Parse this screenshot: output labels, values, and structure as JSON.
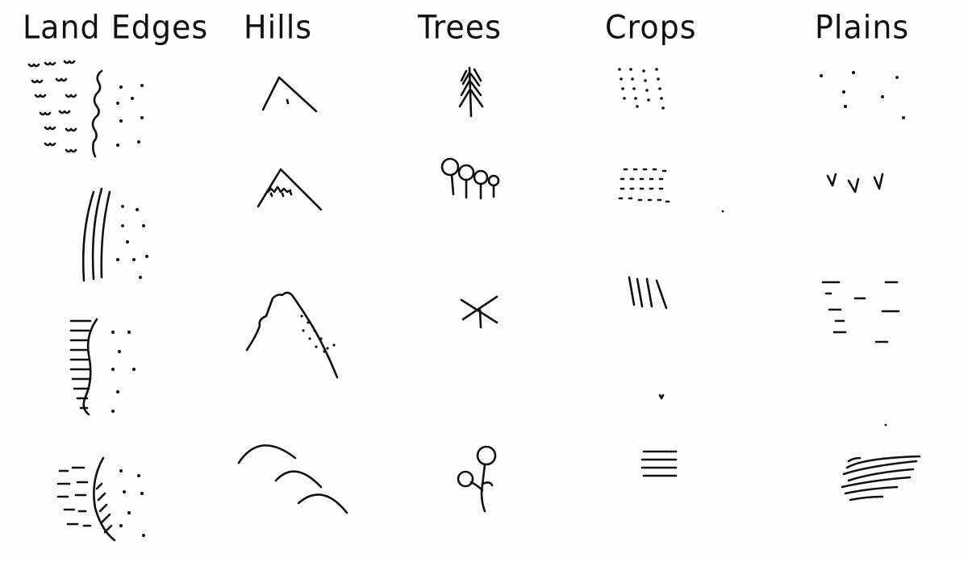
{
  "columns": [
    {
      "id": "land-edges",
      "title": "Land Edges"
    },
    {
      "id": "hills",
      "title": "Hills"
    },
    {
      "id": "trees",
      "title": "Trees"
    },
    {
      "id": "crops",
      "title": "Crops"
    },
    {
      "id": "plains",
      "title": "Plains"
    }
  ],
  "ink_color": "#111111",
  "paper_color": "#fdfdfd"
}
